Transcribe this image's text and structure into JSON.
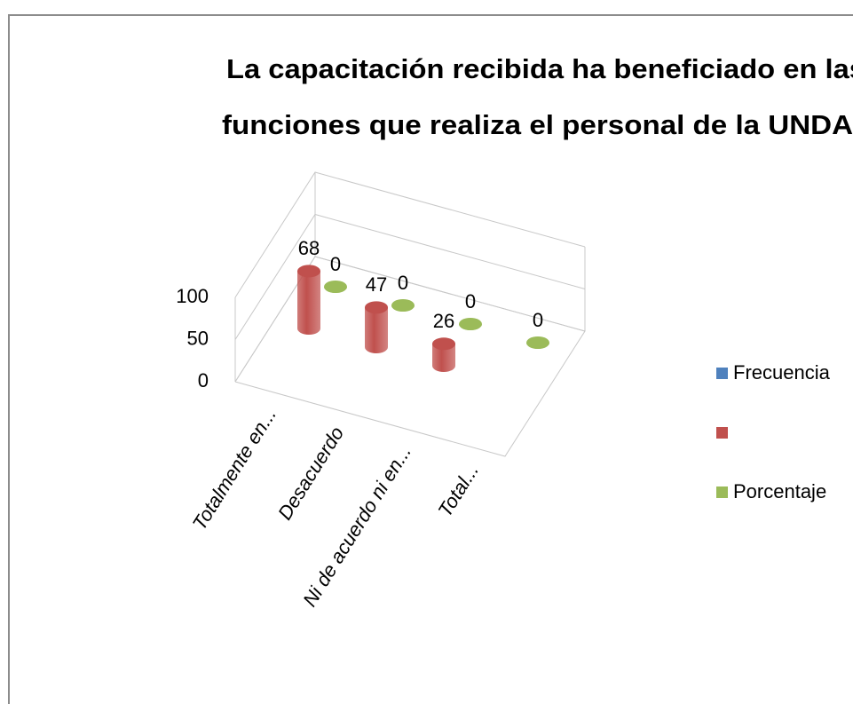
{
  "chart_data": {
    "type": "bar3d",
    "title": [
      "La capacitación recibida ha beneficiado en las",
      "funciones que realiza el personal de la UNDAC"
    ],
    "categories": [
      "Totalmente en...",
      "Desacuerdo",
      "Ni de acuerdo ni en...",
      "Total..."
    ],
    "series": [
      {
        "name": "Frecuencia",
        "color": "#4f81bd",
        "values": [
          null,
          null,
          null,
          null
        ]
      },
      {
        "color": "#c0504d",
        "values": [
          68,
          47,
          26,
          null
        ]
      },
      {
        "name": "Porcentaje",
        "color": "#9bbb59",
        "values": [
          0,
          0,
          0,
          0
        ]
      }
    ],
    "ylim": [
      0,
      100
    ],
    "yticks": [
      0,
      50,
      100
    ],
    "grid": true,
    "legend": "right"
  }
}
